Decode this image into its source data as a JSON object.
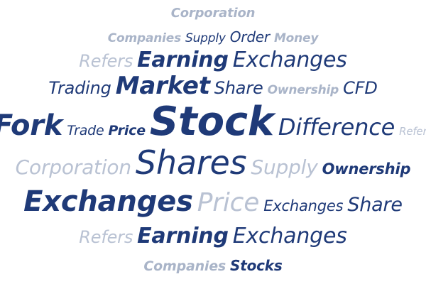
{
  "colors": {
    "primary": "#1f3a78",
    "muted": "#a9b4c8",
    "light": "#b9c2d3"
  },
  "word_cloud": {
    "rows": [
      [
        {
          "text": "Corporation",
          "weight": 1,
          "tone": "muted"
        }
      ],
      [
        {
          "text": "Companies",
          "weight": 1,
          "tone": "muted"
        },
        {
          "text": "Supply",
          "weight": 1,
          "tone": "primary"
        },
        {
          "text": "Order",
          "weight": 2,
          "tone": "primary"
        },
        {
          "text": "Money",
          "weight": 1,
          "tone": "muted"
        }
      ],
      [
        {
          "text": "Refers",
          "weight": 2,
          "tone": "light"
        },
        {
          "text": "Earning",
          "weight": 3,
          "tone": "primary"
        },
        {
          "text": "Exchanges",
          "weight": 3,
          "tone": "primary"
        }
      ],
      [
        {
          "text": "Trading",
          "weight": 2,
          "tone": "primary"
        },
        {
          "text": "Market",
          "weight": 4,
          "tone": "primary"
        },
        {
          "text": "Share",
          "weight": 2,
          "tone": "primary"
        },
        {
          "text": "Ownership",
          "weight": 1,
          "tone": "muted"
        },
        {
          "text": "CFD",
          "weight": 2,
          "tone": "primary"
        }
      ],
      [
        {
          "text": "Fork",
          "weight": 5,
          "tone": "primary"
        },
        {
          "text": "Trade",
          "weight": 1,
          "tone": "primary"
        },
        {
          "text": "Price",
          "weight": 1,
          "tone": "primary"
        },
        {
          "text": "Stock",
          "weight": 6,
          "tone": "primary"
        },
        {
          "text": "Difference",
          "weight": 3,
          "tone": "primary"
        },
        {
          "text": "Refers",
          "weight": 1,
          "tone": "light"
        }
      ],
      [
        {
          "text": "Corporation",
          "weight": 3,
          "tone": "light"
        },
        {
          "text": "Shares",
          "weight": 5,
          "tone": "primary"
        },
        {
          "text": "Supply",
          "weight": 3,
          "tone": "light"
        },
        {
          "text": "Ownership",
          "weight": 2,
          "tone": "primary"
        }
      ],
      [
        {
          "text": "Exchanges",
          "weight": 5,
          "tone": "primary"
        },
        {
          "text": "Price",
          "weight": 4,
          "tone": "light"
        },
        {
          "text": "Exchanges",
          "weight": 2,
          "tone": "primary"
        },
        {
          "text": "Share",
          "weight": 2,
          "tone": "primary"
        }
      ],
      [
        {
          "text": "Refers",
          "weight": 2,
          "tone": "light"
        },
        {
          "text": "Earning",
          "weight": 3,
          "tone": "primary"
        },
        {
          "text": "Exchanges",
          "weight": 3,
          "tone": "primary"
        }
      ],
      [
        {
          "text": "Companies",
          "weight": 1,
          "tone": "muted"
        },
        {
          "text": "Stocks",
          "weight": 2,
          "tone": "primary"
        }
      ]
    ]
  }
}
